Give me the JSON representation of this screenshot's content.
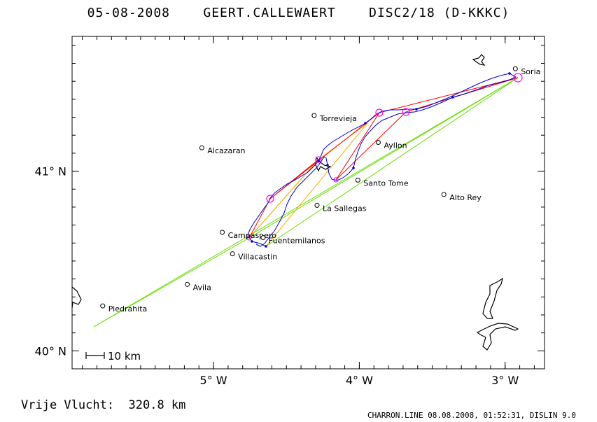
{
  "header": {
    "date": "05-08-2008",
    "pilot": "GEERT.CALLEWAERT",
    "class_glider": "DISC2/18 (D-KKKC)"
  },
  "footer": {
    "distance_text": "Vrije Vlucht:  320.8 km",
    "credits": "CHARRON.LINE 08.08.2008, 01:52:31, DISLIN 9.0"
  },
  "axes": {
    "lat_ticks": [
      {
        "value": 40,
        "label": "40° N"
      },
      {
        "value": 41,
        "label": "41° N"
      }
    ],
    "lon_ticks": [
      {
        "value": -5,
        "label": "5° W"
      },
      {
        "value": -4,
        "label": "4° W"
      },
      {
        "value": -3,
        "label": "3° W"
      }
    ],
    "lon_range": [
      -5.97,
      -2.73
    ],
    "lat_range": [
      39.9,
      41.75
    ],
    "scale_bar": "10 km"
  },
  "towns": [
    {
      "name": "Soria",
      "lon": -2.93,
      "lat": 41.57
    },
    {
      "name": "Torrevieja",
      "lon": -4.31,
      "lat": 41.31
    },
    {
      "name": "Alcazaran",
      "lon": -5.08,
      "lat": 41.13
    },
    {
      "name": "Ayllon",
      "lon": -3.87,
      "lat": 41.16
    },
    {
      "name": "Santo Tome",
      "lon": -4.01,
      "lat": 40.95
    },
    {
      "name": "Alto Rey",
      "lon": -3.42,
      "lat": 40.87
    },
    {
      "name": "La Sallegas",
      "lon": -4.29,
      "lat": 40.81
    },
    {
      "name": "Campaspero",
      "lon": -4.94,
      "lat": 40.66
    },
    {
      "name": "Fuentemilanos",
      "lon": -4.66,
      "lat": 40.63
    },
    {
      "name": "Villacastin",
      "lon": -4.87,
      "lat": 40.54
    },
    {
      "name": "Avila",
      "lon": -5.18,
      "lat": 40.37
    },
    {
      "name": "Piedrahita",
      "lon": -5.76,
      "lat": 40.25
    }
  ],
  "colors": {
    "track": "#0000cc",
    "task_red": "#ff0000",
    "task_orange": "#ffaa00",
    "task_green": "#66dd00",
    "turnpoint": "#ff00ff"
  }
}
